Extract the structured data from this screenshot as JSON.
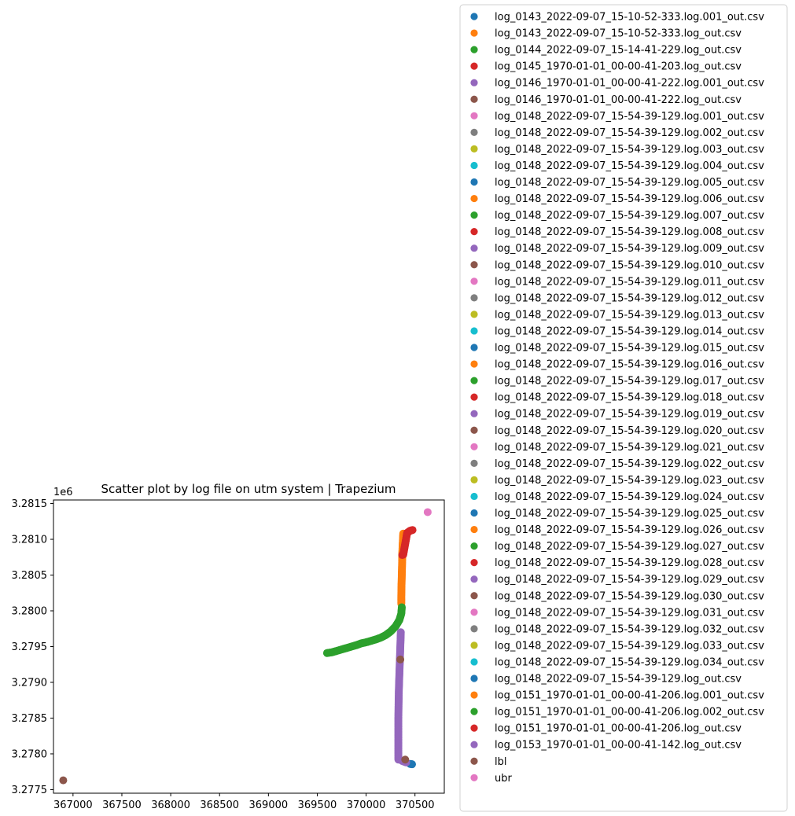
{
  "chart_data": {
    "type": "scatter",
    "title": "Scatter plot by log file on utm system | Trapezium",
    "xlabel": "",
    "ylabel": "",
    "y_offset_label": "1e6",
    "xlim": [
      366800,
      370800
    ],
    "ylim": [
      3277450,
      3281550
    ],
    "x_ticks": [
      367000,
      367500,
      368000,
      368500,
      369000,
      369500,
      370000,
      370500
    ],
    "y_ticks": [
      3277500,
      3278000,
      3278500,
      3279000,
      3279500,
      3280000,
      3280500,
      3281000,
      3281500
    ],
    "x_tick_labels": [
      "367000",
      "367500",
      "368000",
      "368500",
      "369000",
      "369500",
      "370000",
      "370500"
    ],
    "y_tick_labels": [
      "3.2775",
      "3.2780",
      "3.2785",
      "3.2790",
      "3.2795",
      "3.2800",
      "3.2805",
      "3.2810",
      "3.2815"
    ],
    "grid": false,
    "legend_position": "right, outside plot",
    "series": [
      {
        "name": "log_0143_2022-09-07_15-10-52-333.log.001_out.csv",
        "color": "#1f77b4",
        "points": []
      },
      {
        "name": "log_0143_2022-09-07_15-10-52-333.log_out.csv",
        "color": "#ff7f0e",
        "points": []
      },
      {
        "name": "log_0144_2022-09-07_15-14-41-229.log_out.csv",
        "color": "#2ca02c",
        "points": []
      },
      {
        "name": "log_0145_1970-01-01_00-00-41-203.log_out.csv",
        "color": "#d62728",
        "points": []
      },
      {
        "name": "log_0146_1970-01-01_00-00-41-222.log.001_out.csv",
        "color": "#9467bd",
        "points": []
      },
      {
        "name": "log_0146_1970-01-01_00-00-41-222.log_out.csv",
        "color": "#8c564b",
        "points": []
      },
      {
        "name": "log_0148_2022-09-07_15-54-39-129.log.001_out.csv",
        "color": "#e377c2",
        "points": []
      },
      {
        "name": "log_0148_2022-09-07_15-54-39-129.log.002_out.csv",
        "color": "#7f7f7f",
        "points": []
      },
      {
        "name": "log_0148_2022-09-07_15-54-39-129.log.003_out.csv",
        "color": "#bcbd22",
        "points": []
      },
      {
        "name": "log_0148_2022-09-07_15-54-39-129.log.004_out.csv",
        "color": "#17becf",
        "points": []
      },
      {
        "name": "log_0148_2022-09-07_15-54-39-129.log.005_out.csv",
        "color": "#1f77b4",
        "points": []
      },
      {
        "name": "log_0148_2022-09-07_15-54-39-129.log.006_out.csv",
        "color": "#ff7f0e",
        "points": []
      },
      {
        "name": "log_0148_2022-09-07_15-54-39-129.log.007_out.csv",
        "color": "#2ca02c",
        "points": []
      },
      {
        "name": "log_0148_2022-09-07_15-54-39-129.log.008_out.csv",
        "color": "#d62728",
        "points": []
      },
      {
        "name": "log_0148_2022-09-07_15-54-39-129.log.009_out.csv",
        "color": "#9467bd",
        "points": []
      },
      {
        "name": "log_0148_2022-09-07_15-54-39-129.log.010_out.csv",
        "color": "#8c564b",
        "points": []
      },
      {
        "name": "log_0148_2022-09-07_15-54-39-129.log.011_out.csv",
        "color": "#e377c2",
        "points": []
      },
      {
        "name": "log_0148_2022-09-07_15-54-39-129.log.012_out.csv",
        "color": "#7f7f7f",
        "points": []
      },
      {
        "name": "log_0148_2022-09-07_15-54-39-129.log.013_out.csv",
        "color": "#bcbd22",
        "points": []
      },
      {
        "name": "log_0148_2022-09-07_15-54-39-129.log.014_out.csv",
        "color": "#17becf",
        "points": []
      },
      {
        "name": "log_0148_2022-09-07_15-54-39-129.log.015_out.csv",
        "color": "#1f77b4",
        "points": []
      },
      {
        "name": "log_0148_2022-09-07_15-54-39-129.log.016_out.csv",
        "color": "#ff7f0e",
        "points": []
      },
      {
        "name": "log_0148_2022-09-07_15-54-39-129.log.017_out.csv",
        "color": "#2ca02c",
        "points": []
      },
      {
        "name": "log_0148_2022-09-07_15-54-39-129.log.018_out.csv",
        "color": "#d62728",
        "points": []
      },
      {
        "name": "log_0148_2022-09-07_15-54-39-129.log.019_out.csv",
        "color": "#9467bd",
        "points": []
      },
      {
        "name": "log_0148_2022-09-07_15-54-39-129.log.020_out.csv",
        "color": "#8c564b",
        "points": []
      },
      {
        "name": "log_0148_2022-09-07_15-54-39-129.log.021_out.csv",
        "color": "#e377c2",
        "points": []
      },
      {
        "name": "log_0148_2022-09-07_15-54-39-129.log.022_out.csv",
        "color": "#7f7f7f",
        "points": []
      },
      {
        "name": "log_0148_2022-09-07_15-54-39-129.log.023_out.csv",
        "color": "#bcbd22",
        "points": []
      },
      {
        "name": "log_0148_2022-09-07_15-54-39-129.log.024_out.csv",
        "color": "#17becf",
        "points": []
      },
      {
        "name": "log_0148_2022-09-07_15-54-39-129.log.025_out.csv",
        "color": "#1f77b4",
        "points": [
          [
            370450,
            3277860
          ],
          [
            370470,
            3277855
          ]
        ]
      },
      {
        "name": "log_0148_2022-09-07_15-54-39-129.log.026_out.csv",
        "color": "#ff7f0e",
        "points": [
          [
            370380,
            3281080
          ],
          [
            370375,
            3280950
          ],
          [
            370370,
            3280800
          ],
          [
            370368,
            3280650
          ],
          [
            370365,
            3280500
          ],
          [
            370362,
            3280350
          ],
          [
            370360,
            3280200
          ],
          [
            370360,
            3280100
          ]
        ]
      },
      {
        "name": "log_0148_2022-09-07_15-54-39-129.log.027_out.csv",
        "color": "#2ca02c",
        "points": [
          [
            369600,
            3279410
          ],
          [
            369650,
            3279420
          ],
          [
            369700,
            3279440
          ],
          [
            369750,
            3279460
          ],
          [
            369800,
            3279480
          ],
          [
            369850,
            3279500
          ],
          [
            369900,
            3279520
          ],
          [
            369950,
            3279545
          ],
          [
            370000,
            3279560
          ],
          [
            370050,
            3279580
          ],
          [
            370100,
            3279600
          ],
          [
            370150,
            3279625
          ],
          [
            370200,
            3279660
          ],
          [
            370250,
            3279710
          ],
          [
            370300,
            3279780
          ],
          [
            370340,
            3279870
          ],
          [
            370360,
            3279960
          ],
          [
            370365,
            3280050
          ]
        ]
      },
      {
        "name": "log_0148_2022-09-07_15-54-39-129.log.028_out.csv",
        "color": "#d62728",
        "points": [
          [
            370370,
            3280780
          ],
          [
            370380,
            3280785
          ],
          [
            370420,
            3281090
          ],
          [
            370450,
            3281120
          ],
          [
            370475,
            3281130
          ]
        ]
      },
      {
        "name": "log_0148_2022-09-07_15-54-39-129.log.029_out.csv",
        "color": "#9467bd",
        "points": [
          [
            370330,
            3277920
          ],
          [
            370330,
            3278100
          ],
          [
            370330,
            3278300
          ],
          [
            370330,
            3278500
          ],
          [
            370332,
            3278700
          ],
          [
            370335,
            3278900
          ],
          [
            370340,
            3279100
          ],
          [
            370345,
            3279300
          ],
          [
            370350,
            3279500
          ],
          [
            370355,
            3279700
          ],
          [
            370370,
            3277900
          ],
          [
            370410,
            3277880
          ]
        ]
      },
      {
        "name": "log_0148_2022-09-07_15-54-39-129.log.030_out.csv",
        "color": "#8c564b",
        "points": [
          [
            370350,
            3279320
          ],
          [
            370400,
            3277920
          ]
        ]
      },
      {
        "name": "log_0148_2022-09-07_15-54-39-129.log.031_out.csv",
        "color": "#e377c2",
        "points": []
      },
      {
        "name": "log_0148_2022-09-07_15-54-39-129.log.032_out.csv",
        "color": "#7f7f7f",
        "points": []
      },
      {
        "name": "log_0148_2022-09-07_15-54-39-129.log.033_out.csv",
        "color": "#bcbd22",
        "points": []
      },
      {
        "name": "log_0148_2022-09-07_15-54-39-129.log.034_out.csv",
        "color": "#17becf",
        "points": []
      },
      {
        "name": "log_0148_2022-09-07_15-54-39-129.log_out.csv",
        "color": "#1f77b4",
        "points": []
      },
      {
        "name": "log_0151_1970-01-01_00-00-41-206.log.001_out.csv",
        "color": "#ff7f0e",
        "points": []
      },
      {
        "name": "log_0151_1970-01-01_00-00-41-206.log.002_out.csv",
        "color": "#2ca02c",
        "points": []
      },
      {
        "name": "log_0151_1970-01-01_00-00-41-206.log_out.csv",
        "color": "#d62728",
        "points": []
      },
      {
        "name": "log_0153_1970-01-01_00-00-41-142.log_out.csv",
        "color": "#9467bd",
        "points": []
      },
      {
        "name": "lbl",
        "color": "#8c564b",
        "points": [
          [
            366900,
            3277630
          ]
        ]
      },
      {
        "name": "ubr",
        "color": "#e377c2",
        "points": [
          [
            370630,
            3281380
          ]
        ]
      }
    ]
  }
}
